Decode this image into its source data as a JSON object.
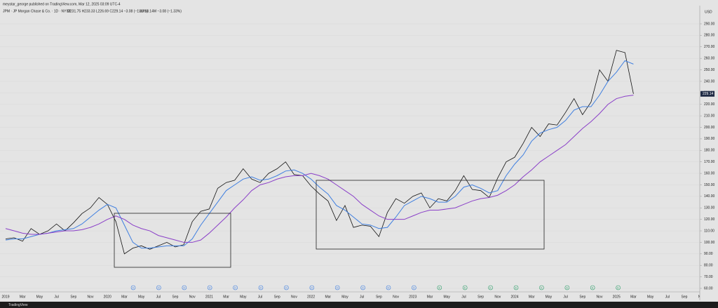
{
  "chart_data": {
    "type": "line",
    "subtitle": "meystar_george published on TradingView.com, Mar 12, 2025 03:09 UTC-4",
    "title": "JPM · JP Morgan Chase & Co. · 1D · NYSE",
    "ohlc": "O231.75 H233.33 L226.69 C229.14 −3.08 (−1.33%)",
    "volume": "Vol 18.14M −3.08 (−1.33%)",
    "currency": "USD",
    "footer": "TradingView",
    "categories": [
      "2019",
      null,
      "Mar",
      null,
      "May",
      null,
      "Jul",
      null,
      "Sep",
      null,
      "Nov",
      null,
      "2020",
      null,
      "Mar",
      null,
      "May",
      null,
      "Jul",
      null,
      "Sep",
      null,
      "Nov",
      null,
      "2021",
      null,
      "Mar",
      null,
      "May",
      null,
      "Jul",
      null,
      "Sep",
      null,
      "Nov",
      null,
      "2022",
      null,
      "Mar",
      null,
      "May",
      null,
      "Jul",
      null,
      "Sep",
      null,
      "Nov",
      null,
      "2023",
      null,
      "Mar",
      null,
      "May",
      null,
      "Jul",
      null,
      "Sep",
      null,
      "Nov",
      null,
      "2024",
      null,
      "Mar",
      null,
      "May",
      null,
      "Jul",
      null,
      "Sep",
      null,
      "Nov",
      null,
      "2025",
      null,
      "Mar",
      null,
      "May",
      null,
      "Jul",
      null,
      "Sep",
      null,
      "Nov"
    ],
    "series": [
      {
        "color": "#111111",
        "values": [
          103,
          104,
          101,
          112,
          107,
          110,
          116,
          110,
          117,
          125,
          130,
          139,
          133,
          118,
          90,
          95,
          97,
          94,
          97,
          100,
          96,
          98,
          118,
          127,
          129,
          147,
          152,
          154,
          164,
          155,
          152,
          160,
          164,
          170,
          159,
          158,
          149,
          142,
          136,
          119,
          132,
          113,
          115,
          114,
          105,
          126,
          138,
          134,
          140,
          143,
          130,
          138,
          136,
          145,
          158,
          146,
          145,
          139,
          156,
          170,
          174,
          186,
          200,
          192,
          203,
          202,
          213,
          225,
          211,
          222,
          250,
          240,
          267,
          265,
          229.14,
          null,
          null,
          null,
          null,
          null,
          null,
          null,
          null
        ]
      },
      {
        "color": "#3f7fe0",
        "values": [
          102,
          103,
          103,
          105,
          107,
          108,
          110,
          111,
          112,
          116,
          122,
          128,
          133,
          130,
          115,
          100,
          95,
          95,
          96,
          97,
          97,
          97,
          103,
          115,
          125,
          135,
          145,
          150,
          155,
          157,
          154,
          155,
          158,
          162,
          163,
          160,
          155,
          148,
          142,
          132,
          128,
          122,
          116,
          115,
          112,
          113,
          122,
          132,
          136,
          140,
          138,
          135,
          135,
          140,
          148,
          150,
          147,
          143,
          145,
          158,
          168,
          176,
          188,
          195,
          198,
          200,
          206,
          215,
          218,
          218,
          228,
          240,
          248,
          258,
          255,
          null,
          null,
          null,
          null,
          null,
          null,
          null,
          null
        ]
      },
      {
        "color": "#8a3fc8",
        "values": [
          112,
          110,
          108,
          107,
          107,
          108,
          109,
          110,
          110,
          111,
          113,
          116,
          120,
          123,
          120,
          115,
          112,
          110,
          106,
          104,
          102,
          100,
          100,
          102,
          108,
          115,
          122,
          130,
          137,
          145,
          150,
          152,
          155,
          157,
          158,
          158,
          160,
          158,
          155,
          150,
          145,
          140,
          133,
          128,
          123,
          120,
          120,
          120,
          123,
          126,
          128,
          128,
          129,
          130,
          133,
          136,
          138,
          139,
          141,
          145,
          150,
          157,
          163,
          170,
          175,
          180,
          185,
          192,
          199,
          205,
          212,
          220,
          225,
          227,
          228,
          null,
          null,
          null,
          null,
          null,
          null,
          null,
          null
        ]
      }
    ],
    "ylim": [
      60,
      290
    ],
    "yticks": [
      {
        "value": 60,
        "label": "60.00"
      },
      {
        "value": 70,
        "label": "70.00"
      },
      {
        "value": 80,
        "label": "80.00"
      },
      {
        "value": 90,
        "label": "90.00"
      },
      {
        "value": 100,
        "label": "100.00"
      },
      {
        "value": 110,
        "label": "110.00"
      },
      {
        "value": 120,
        "label": "120.00"
      },
      {
        "value": 130,
        "label": "130.00"
      },
      {
        "value": 140,
        "label": "140.00"
      },
      {
        "value": 150,
        "label": "150.00"
      },
      {
        "value": 160,
        "label": "160.00"
      },
      {
        "value": 170,
        "label": "170.00"
      },
      {
        "value": 180,
        "label": "180.00"
      },
      {
        "value": 190,
        "label": "190.00"
      },
      {
        "value": 200,
        "label": "200.00"
      },
      {
        "value": 210,
        "label": "210.00"
      },
      {
        "value": 220,
        "label": "220.00"
      },
      {
        "value": 230,
        "label": "230.00"
      },
      {
        "value": 240,
        "label": "240.00"
      },
      {
        "value": 250,
        "label": "250.00"
      },
      {
        "value": 260,
        "label": "260.00"
      },
      {
        "value": 270,
        "label": "270.00"
      },
      {
        "value": 280,
        "label": "280.00"
      },
      {
        "value": 290,
        "label": "290.00"
      }
    ],
    "grid": true,
    "events": [
      "D",
      "D",
      "D",
      "D",
      "D",
      "D",
      "D",
      "D",
      "D",
      "D",
      "D",
      "D",
      "E",
      "E",
      "E",
      "E",
      "E",
      "E",
      "E",
      "E"
    ]
  }
}
